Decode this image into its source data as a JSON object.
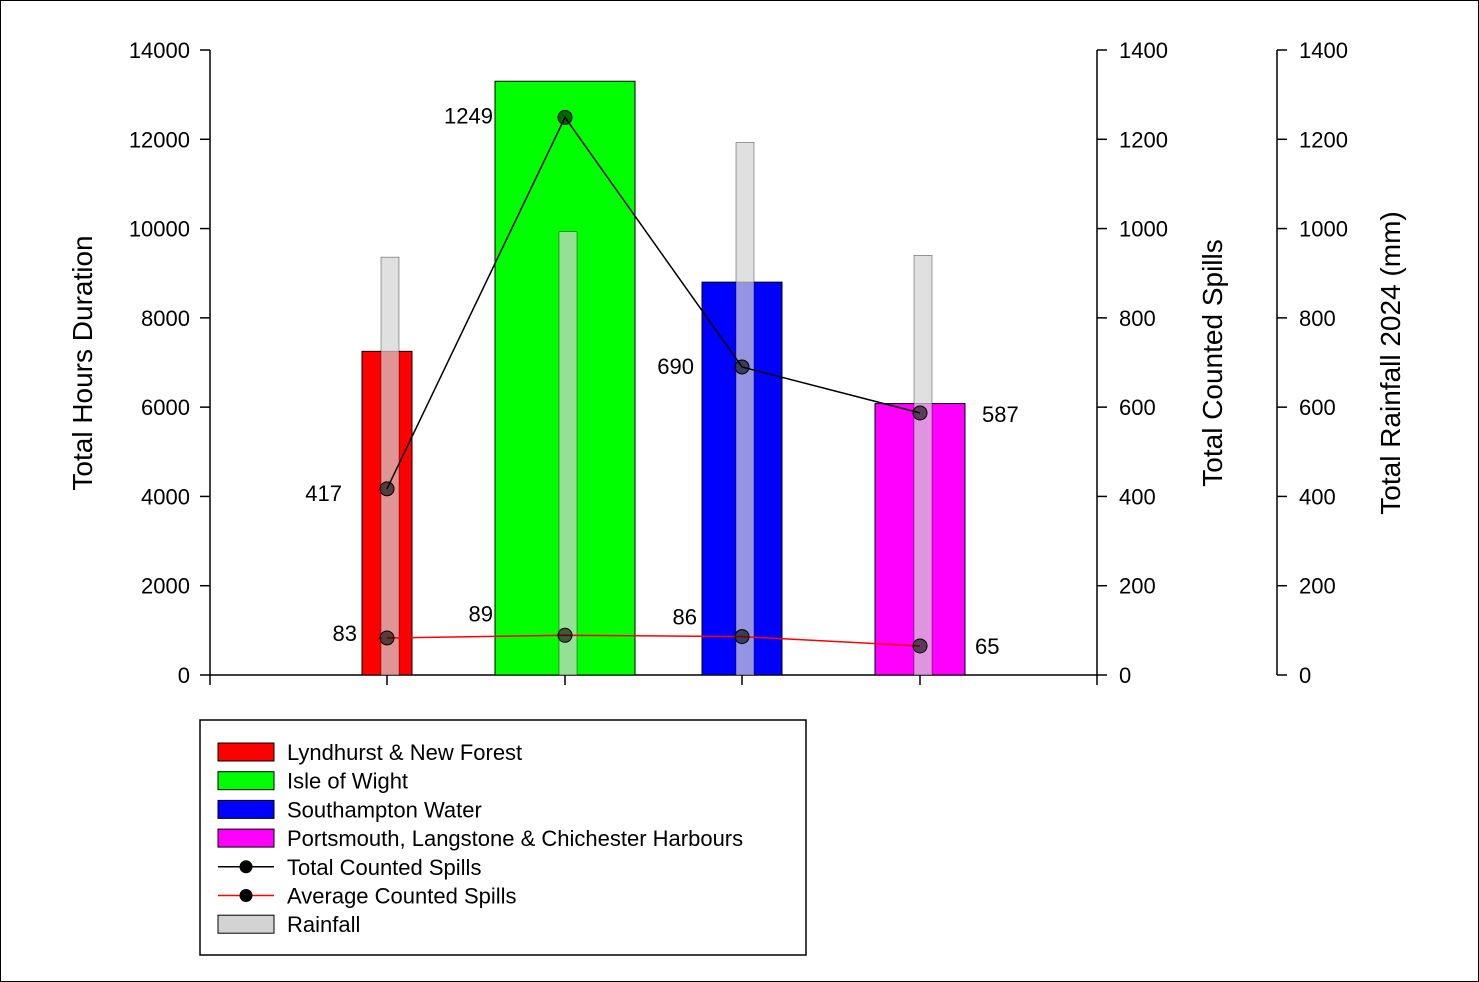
{
  "chart_data": {
    "type": "bar",
    "title": "",
    "categories": [
      "Lyndhurst & New Forest",
      "Isle of Wight",
      "Southampton Water",
      "Portsmouth, Langstone & Chichester Harbours"
    ],
    "hours_duration": {
      "name": "",
      "values": [
        7250,
        13300,
        8800,
        6080
      ],
      "colors": [
        "#ff0000",
        "#00ff00",
        "#0000ff",
        "#ff00ff"
      ]
    },
    "total_counted_spills": {
      "name": "Total Counted Spills",
      "values": [
        417,
        1249,
        690,
        587
      ],
      "color": "#000000"
    },
    "average_counted_spills": {
      "name": "Average Counted Spills",
      "values": [
        83,
        89,
        86,
        65
      ],
      "color": "#ff0000"
    },
    "rainfall": {
      "name": "Rainfall",
      "values": [
        936,
        993,
        1193,
        940
      ],
      "color": "#d3d3d3"
    },
    "axes": {
      "left": {
        "label": "Total Hours Duration",
        "range": [
          0,
          14000
        ],
        "ticks": [
          "0",
          "2000",
          "4000",
          "6000",
          "8000",
          "10000",
          "12000",
          "14000"
        ]
      },
      "right1": {
        "label": "Total Counted Spills",
        "range": [
          0,
          1400
        ],
        "ticks": [
          "0",
          "200",
          "400",
          "600",
          "800",
          "1000",
          "1200",
          "1400"
        ]
      },
      "right2": {
        "label": "Total Rainfall 2024 (mm)",
        "range": [
          0,
          1400
        ],
        "ticks": [
          "0",
          "200",
          "400",
          "600",
          "800",
          "1000",
          "1200",
          "1400"
        ]
      }
    },
    "grid": false,
    "legend_position": "bottom-left",
    "legend": [
      {
        "label": "Lyndhurst & New Forest",
        "kind": "bar",
        "color": "#ff0000"
      },
      {
        "label": "Isle of Wight",
        "kind": "bar",
        "color": "#00ff00"
      },
      {
        "label": "Southampton Water",
        "kind": "bar",
        "color": "#0000ff"
      },
      {
        "label": "Portsmouth, Langstone & Chichester Harbours",
        "kind": "bar",
        "color": "#ff00ff"
      },
      {
        "label": "Total Counted Spills",
        "kind": "line",
        "color": "#000000"
      },
      {
        "label": "Average Counted Spills",
        "kind": "line",
        "color": "#ff0000"
      },
      {
        "label": "Rainfall",
        "kind": "bar",
        "color": "#d3d3d3"
      }
    ]
  }
}
